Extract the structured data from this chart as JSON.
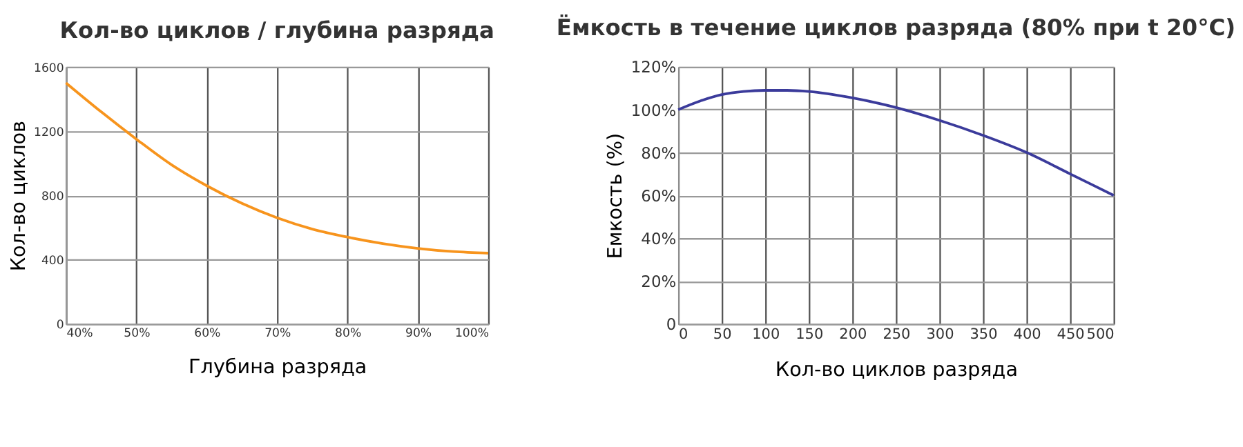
{
  "chart_data": [
    {
      "type": "line",
      "title": "Кол-во циклов / глубина разряда",
      "xlabel": "Глубина разряда",
      "ylabel": "Кол-во циклов",
      "x": [
        40,
        45,
        50,
        55,
        60,
        65,
        70,
        75,
        80,
        85,
        90,
        95,
        100
      ],
      "series": [
        {
          "color": "#f7941d",
          "values": [
            1500,
            1320,
            1150,
            990,
            860,
            750,
            660,
            590,
            540,
            500,
            470,
            450,
            440
          ]
        }
      ],
      "xlim": [
        40,
        100
      ],
      "xticks": [
        {
          "value": 40,
          "label": "40%"
        },
        {
          "value": 50,
          "label": "50%"
        },
        {
          "value": 60,
          "label": "60%"
        },
        {
          "value": 70,
          "label": "70%"
        },
        {
          "value": 80,
          "label": "80%"
        },
        {
          "value": 90,
          "label": "90%"
        },
        {
          "value": 100,
          "label": "100%"
        }
      ],
      "ylim": [
        0,
        1600
      ],
      "yticks": [
        0,
        400,
        800,
        1200,
        1600
      ],
      "grid": true,
      "marker": "none",
      "line_style": "solid"
    },
    {
      "type": "line",
      "title": "Ёмкость в течение циклов разряда (80% при t 20°C)",
      "xlabel": "Кол-во циклов разряда",
      "ylabel": "Емкость (%)",
      "x": [
        0,
        25,
        50,
        75,
        100,
        125,
        150,
        200,
        250,
        300,
        350,
        400,
        450,
        500
      ],
      "series": [
        {
          "color": "#3b3b9b",
          "values": [
            100,
            104,
            107,
            108.5,
            109,
            109,
            108.5,
            105.5,
            101,
            95,
            88,
            80,
            70,
            60
          ]
        }
      ],
      "xlim": [
        0,
        500
      ],
      "xticks": [
        0,
        50,
        100,
        150,
        200,
        250,
        300,
        350,
        400,
        450,
        500
      ],
      "ylim": [
        0,
        120
      ],
      "yticks": [
        {
          "value": 0,
          "label": "0"
        },
        {
          "value": 20,
          "label": "20%"
        },
        {
          "value": 40,
          "label": "40%"
        },
        {
          "value": 60,
          "label": "60%"
        },
        {
          "value": 80,
          "label": "80%"
        },
        {
          "value": 100,
          "label": "100%"
        },
        {
          "value": 120,
          "label": "120%"
        }
      ],
      "grid": true,
      "marker": "none",
      "line_style": "solid"
    }
  ]
}
